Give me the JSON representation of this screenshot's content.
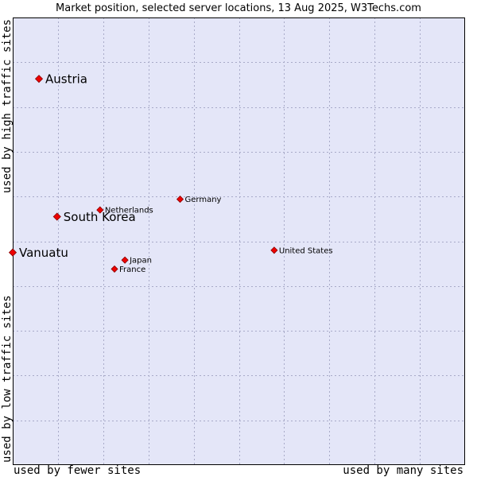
{
  "chart_data": {
    "type": "scatter",
    "title": "Market position, selected server locations, 13 Aug 2025, W3Techs.com",
    "xlabel_left": "used by fewer sites",
    "xlabel_right": "used by many sites",
    "ylabel_top": "used by high traffic sites",
    "ylabel_bottom": "used by low traffic sites",
    "xlim": [
      0,
      10
    ],
    "ylim": [
      0,
      10
    ],
    "grid": true,
    "colors": {
      "plot_bg": "#e4e6f8",
      "grid": "#a8aac8",
      "border": "#000000",
      "marker": "#ee0000",
      "marker_edge": "#880000"
    },
    "points": [
      {
        "label": "Austria",
        "x": 0.58,
        "y": 8.63,
        "highlight": true
      },
      {
        "label": "South Korea",
        "x": 0.98,
        "y": 5.55,
        "highlight": true
      },
      {
        "label": "Vanuatu",
        "x": 0.0,
        "y": 4.75,
        "highlight": true
      },
      {
        "label": "Netherlands",
        "x": 1.93,
        "y": 5.7,
        "highlight": false
      },
      {
        "label": "Germany",
        "x": 3.7,
        "y": 5.94,
        "highlight": false
      },
      {
        "label": "United States",
        "x": 5.78,
        "y": 4.8,
        "highlight": false
      },
      {
        "label": "Japan",
        "x": 2.48,
        "y": 4.58,
        "highlight": false
      },
      {
        "label": "France",
        "x": 2.25,
        "y": 4.38,
        "highlight": false
      }
    ]
  }
}
